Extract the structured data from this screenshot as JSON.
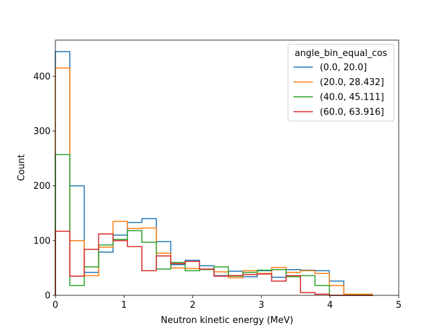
{
  "chart_data": {
    "type": "histogram-step",
    "xlabel": "Neutron kinetic energy (MeV)",
    "ylabel": "Count",
    "xlim": [
      0,
      5
    ],
    "ylim": [
      0,
      466
    ],
    "xticks": [
      0,
      1,
      2,
      3,
      4,
      5
    ],
    "yticks": [
      0,
      100,
      200,
      300,
      400
    ],
    "grid": false,
    "legend_title": "angle_bin_equal_cos",
    "legend_position": "top-right",
    "bin_edges": [
      0.0,
      0.21,
      0.42,
      0.63,
      0.84,
      1.05,
      1.26,
      1.47,
      1.68,
      1.89,
      2.1,
      2.31,
      2.52,
      2.73,
      2.94,
      3.15,
      3.36,
      3.57,
      3.78,
      3.99,
      4.2,
      4.41,
      4.62
    ],
    "series": [
      {
        "name": "(0.0, 20.0]",
        "color": "#1f77b4",
        "values": [
          445,
          200,
          42,
          79,
          110,
          133,
          140,
          98,
          56,
          64,
          54,
          36,
          44,
          34,
          45,
          33,
          47,
          46,
          45,
          26,
          1,
          1
        ]
      },
      {
        "name": "(20.0, 28.432]",
        "color": "#ff7f0e",
        "values": [
          415,
          100,
          36,
          88,
          135,
          122,
          123,
          77,
          50,
          49,
          47,
          43,
          32,
          45,
          40,
          51,
          42,
          45,
          40,
          18,
          2,
          2
        ]
      },
      {
        "name": "(40.0, 45.111]",
        "color": "#2ca02c",
        "values": [
          257,
          18,
          52,
          92,
          102,
          118,
          97,
          48,
          60,
          45,
          47,
          52,
          35,
          42,
          46,
          47,
          34,
          36,
          18,
          0,
          0,
          0
        ]
      },
      {
        "name": "(60.0, 63.916]",
        "color": "#d62728",
        "values": [
          117,
          35,
          84,
          112,
          100,
          89,
          45,
          72,
          58,
          62,
          48,
          35,
          36,
          38,
          39,
          26,
          36,
          5,
          2,
          0,
          0,
          0
        ]
      }
    ]
  }
}
